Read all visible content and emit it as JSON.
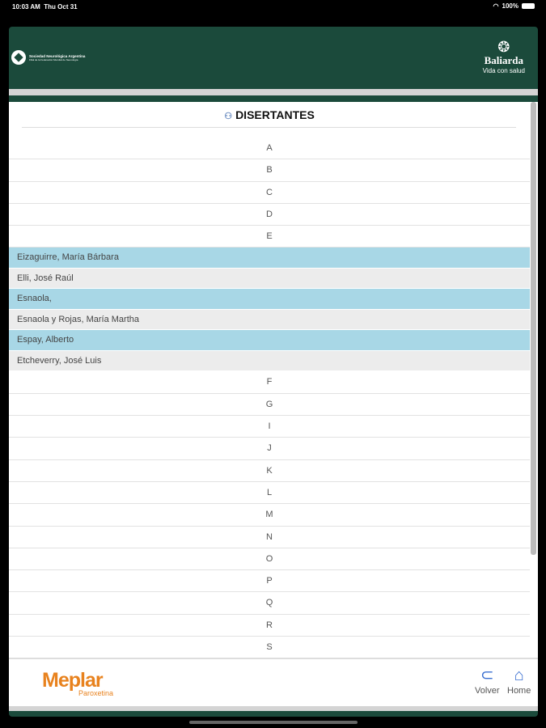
{
  "status_bar": {
    "time": "10:03 AM",
    "date": "Thu Oct 31",
    "battery": "100%"
  },
  "header": {
    "left_logo": "Sociedad Neurológica Argentina",
    "left_logo_sub": "Filial de la Federación Mundial de Neurología",
    "right_logo": "Baliarda",
    "right_tagline": "Vida con salud"
  },
  "page": {
    "title": "DISERTANTES",
    "title_icon": "people-icon"
  },
  "list_before": [
    "A",
    "B",
    "C",
    "D",
    "E"
  ],
  "names": [
    {
      "name": "Eizaguirre, María Bárbara",
      "highlight": true
    },
    {
      "name": "Elli, José Raúl",
      "highlight": false
    },
    {
      "name": "Esnaola,",
      "highlight": true
    },
    {
      "name": "Esnaola y Rojas, María Martha",
      "highlight": false
    },
    {
      "name": "Espay, Alberto",
      "highlight": true
    },
    {
      "name": "Etcheverry, José Luis",
      "highlight": false
    }
  ],
  "list_after": [
    "F",
    "G",
    "I",
    "J",
    "K",
    "L",
    "M",
    "N",
    "O",
    "P",
    "Q",
    "R",
    "S"
  ],
  "footer": {
    "brand": "Meplar",
    "brand_sub": "Paroxetina",
    "back_label": "Volver",
    "home_label": "Home"
  },
  "colors": {
    "header": "#1b4a3b",
    "highlight": "#a8d7e6",
    "brand": "#e8821e",
    "icon": "#3a6fd0"
  }
}
